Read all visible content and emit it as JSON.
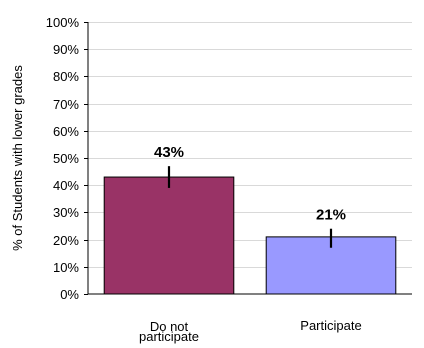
{
  "chart_data": {
    "type": "bar",
    "ylabel": "% of Students with lower grades",
    "ylim": [
      0,
      100
    ],
    "ytick_labels": [
      "0%",
      "10%",
      "20%",
      "30%",
      "40%",
      "50%",
      "60%",
      "70%",
      "80%",
      "90%",
      "100%"
    ],
    "grid": true,
    "categories": [
      {
        "lines": [
          "Do not",
          "participate"
        ]
      },
      {
        "lines": [
          "Participate"
        ]
      }
    ],
    "values": [
      43,
      21
    ],
    "value_labels": [
      "43%",
      "21%"
    ],
    "error": [
      [
        39,
        47
      ],
      [
        17,
        24
      ]
    ],
    "colors": [
      "#993366",
      "#9999ff"
    ]
  }
}
